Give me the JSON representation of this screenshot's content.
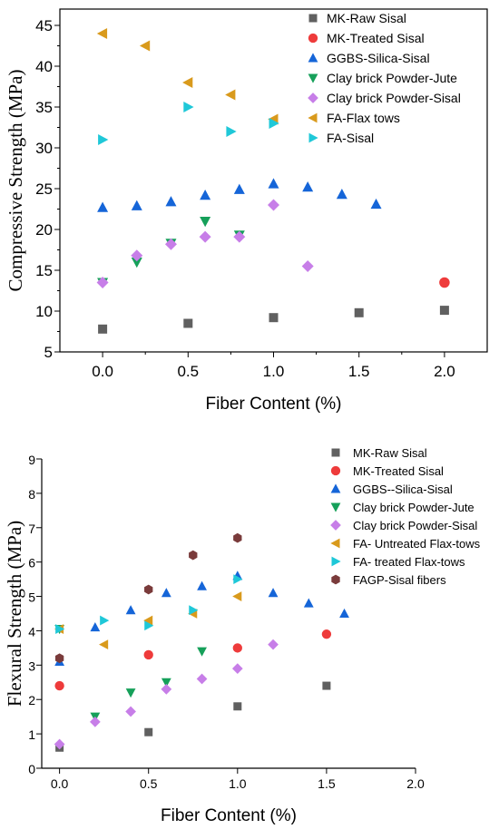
{
  "chart_data": [
    {
      "type": "scatter",
      "xlabel": "Fiber Content (%)",
      "ylabel": "Compressive Strength (MPa)",
      "xlim": [
        -0.25,
        2.25
      ],
      "ylim": [
        5,
        47
      ],
      "xticks": [
        "0.0",
        "0.5",
        "1.0",
        "1.5",
        "2.0"
      ],
      "xtick_values": [
        0,
        0.5,
        1,
        1.5,
        2
      ],
      "yticks": [
        "5",
        "10",
        "15",
        "20",
        "25",
        "30",
        "35",
        "40",
        "45"
      ],
      "ytick_values": [
        5,
        10,
        15,
        20,
        25,
        30,
        35,
        40,
        45
      ],
      "legend_position": "top-right",
      "series": [
        {
          "name": "MK-Raw Sisal",
          "marker": "square",
          "color": "#606060",
          "points": [
            [
              0,
              7.8
            ],
            [
              0.5,
              8.5
            ],
            [
              1.0,
              9.2
            ],
            [
              1.5,
              9.8
            ],
            [
              2.0,
              10.1
            ]
          ]
        },
        {
          "name": "MK-Treated Sisal",
          "marker": "circle",
          "color": "#ee3b3b",
          "points": [
            [
              2.0,
              13.5
            ]
          ]
        },
        {
          "name": "GGBS-Silica-Sisal",
          "marker": "triangle-up",
          "color": "#1565d8",
          "points": [
            [
              0,
              22.7
            ],
            [
              0.2,
              22.9
            ],
            [
              0.4,
              23.4
            ],
            [
              0.6,
              24.2
            ],
            [
              0.8,
              24.9
            ],
            [
              1.0,
              25.6
            ],
            [
              1.2,
              25.2
            ],
            [
              1.4,
              24.3
            ],
            [
              1.6,
              23.1
            ]
          ]
        },
        {
          "name": "Clay brick Powder-Jute",
          "marker": "triangle-down",
          "color": "#16a05a",
          "points": [
            [
              0,
              13.5
            ],
            [
              0.2,
              16.0
            ],
            [
              0.4,
              18.3
            ],
            [
              0.6,
              21.0
            ],
            [
              0.8,
              19.3
            ]
          ]
        },
        {
          "name": "Clay brick Powder-Sisal",
          "marker": "diamond",
          "color": "#c77ee8",
          "points": [
            [
              0,
              13.5
            ],
            [
              0.2,
              16.8
            ],
            [
              0.4,
              18.2
            ],
            [
              0.6,
              19.1
            ],
            [
              0.8,
              19.1
            ],
            [
              1.0,
              23.0
            ],
            [
              1.2,
              15.5
            ]
          ]
        },
        {
          "name": "FA-Flax tows",
          "marker": "triangle-left",
          "color": "#d99a1c",
          "points": [
            [
              0,
              44.0
            ],
            [
              0.25,
              42.5
            ],
            [
              0.5,
              38.0
            ],
            [
              0.75,
              36.5
            ],
            [
              1.0,
              33.5
            ]
          ]
        },
        {
          "name": "FA-Sisal",
          "marker": "triangle-right",
          "color": "#1fc8d8",
          "points": [
            [
              0,
              31.0
            ],
            [
              0.5,
              35.0
            ],
            [
              0.75,
              32.0
            ],
            [
              1.0,
              33.0
            ]
          ]
        }
      ]
    },
    {
      "type": "scatter",
      "xlabel": "Fiber Content (%)",
      "ylabel": "Flexural Strength (MPa)",
      "xlim": [
        -0.1,
        2.0
      ],
      "ylim": [
        0,
        9
      ],
      "xticks": [
        "0.0",
        "0.5",
        "1.0",
        "1.5",
        "2.0"
      ],
      "xtick_values": [
        0,
        0.5,
        1,
        1.5,
        2
      ],
      "yticks": [
        "0",
        "1",
        "2",
        "3",
        "4",
        "5",
        "6",
        "7",
        "8",
        "9"
      ],
      "ytick_values": [
        0,
        1,
        2,
        3,
        4,
        5,
        6,
        7,
        8,
        9
      ],
      "legend_position": "top-right",
      "series": [
        {
          "name": "MK-Raw Sisal",
          "marker": "square",
          "color": "#606060",
          "points": [
            [
              0,
              0.6
            ],
            [
              0.5,
              1.05
            ],
            [
              1.0,
              1.8
            ],
            [
              1.5,
              2.4
            ]
          ]
        },
        {
          "name": "MK-Treated Sisal",
          "marker": "circle",
          "color": "#ee3b3b",
          "points": [
            [
              0,
              2.4
            ],
            [
              0.5,
              3.3
            ],
            [
              1.0,
              3.5
            ],
            [
              1.5,
              3.9
            ]
          ]
        },
        {
          "name": "GGBS--Silica-Sisal",
          "marker": "triangle-up",
          "color": "#1565d8",
          "points": [
            [
              0,
              3.1
            ],
            [
              0.2,
              4.1
            ],
            [
              0.4,
              4.6
            ],
            [
              0.6,
              5.1
            ],
            [
              0.8,
              5.3
            ],
            [
              1.0,
              5.6
            ],
            [
              1.2,
              5.1
            ],
            [
              1.4,
              4.8
            ],
            [
              1.6,
              4.5
            ]
          ]
        },
        {
          "name": "Clay brick Powder-Jute",
          "marker": "triangle-down",
          "color": "#16a05a",
          "points": [
            [
              0,
              4.05
            ],
            [
              0.2,
              1.5
            ],
            [
              0.4,
              2.2
            ],
            [
              0.6,
              2.5
            ],
            [
              0.8,
              3.4
            ]
          ]
        },
        {
          "name": "Clay brick Powder-Sisal",
          "marker": "diamond",
          "color": "#c77ee8",
          "points": [
            [
              0,
              0.7
            ],
            [
              0.2,
              1.35
            ],
            [
              0.4,
              1.65
            ],
            [
              0.6,
              2.3
            ],
            [
              0.8,
              2.6
            ],
            [
              1.0,
              2.9
            ],
            [
              1.2,
              3.6
            ]
          ]
        },
        {
          "name": "FA- Untreated Flax-tows",
          "marker": "triangle-left",
          "color": "#d99a1c",
          "points": [
            [
              0,
              4.05
            ],
            [
              0.25,
              3.6
            ],
            [
              0.5,
              4.3
            ],
            [
              0.75,
              4.5
            ],
            [
              1.0,
              5.0
            ]
          ]
        },
        {
          "name": "FA- treated Flax-tows",
          "marker": "triangle-right",
          "color": "#1fc8d8",
          "points": [
            [
              0,
              4.05
            ],
            [
              0.25,
              4.3
            ],
            [
              0.5,
              4.15
            ],
            [
              0.75,
              4.6
            ],
            [
              1.0,
              5.5
            ]
          ]
        },
        {
          "name": "FAGP-Sisal fibers",
          "marker": "hexagon",
          "color": "#7a3b3b",
          "points": [
            [
              0,
              3.2
            ],
            [
              0.5,
              5.2
            ],
            [
              0.75,
              6.2
            ],
            [
              1.0,
              6.7
            ]
          ]
        }
      ]
    }
  ]
}
